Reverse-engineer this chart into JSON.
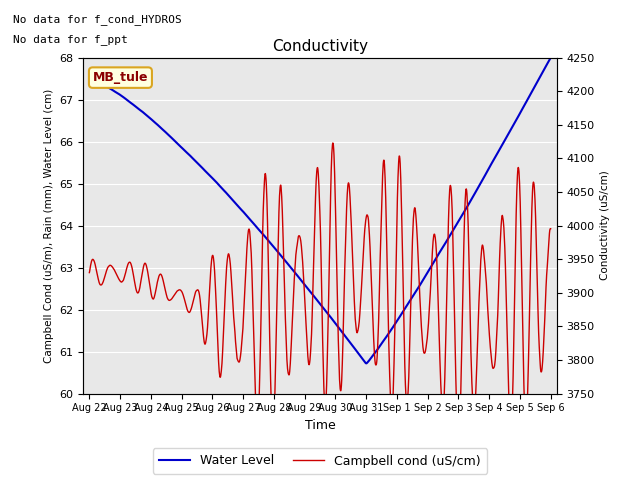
{
  "title": "Conductivity",
  "ylabel_left": "Campbell Cond (uS/m), Rain (mm), Water Level (cm)",
  "ylabel_right": "Conductivity (uS/cm)",
  "xlabel": "Time",
  "ylim_left": [
    60.0,
    68.0
  ],
  "ylim_right": [
    3750,
    4250
  ],
  "yticks_left": [
    60.0,
    61.0,
    62.0,
    63.0,
    64.0,
    65.0,
    66.0,
    67.0,
    68.0
  ],
  "yticks_right": [
    3750,
    3800,
    3850,
    3900,
    3950,
    4000,
    4050,
    4100,
    4150,
    4200,
    4250
  ],
  "bg_color": "#e8e8e8",
  "text_no_data1": "No data for f_cond_HYDROS",
  "text_no_data2": "No data for f_ppt",
  "annotation_label": "MB_tule",
  "water_level_color": "#0000cc",
  "campbell_color": "#cc0000",
  "legend_water": "Water Level",
  "legend_campbell": "Campbell cond (uS/cm)",
  "n_points": 1500,
  "xtick_positions": [
    0,
    1,
    2,
    3,
    4,
    5,
    6,
    7,
    8,
    9,
    10,
    11,
    12,
    13,
    14,
    15
  ],
  "xtick_labels": [
    "Aug 22",
    "Aug 23",
    "Aug 24",
    "Aug 25",
    "Aug 26",
    "Aug 27",
    "Aug 28",
    "Aug 29",
    "Aug 30",
    "Aug 31",
    "Sep 1",
    "Sep 2",
    "Sep 3",
    "Sep 4",
    "Sep 5",
    "Sep 6"
  ]
}
